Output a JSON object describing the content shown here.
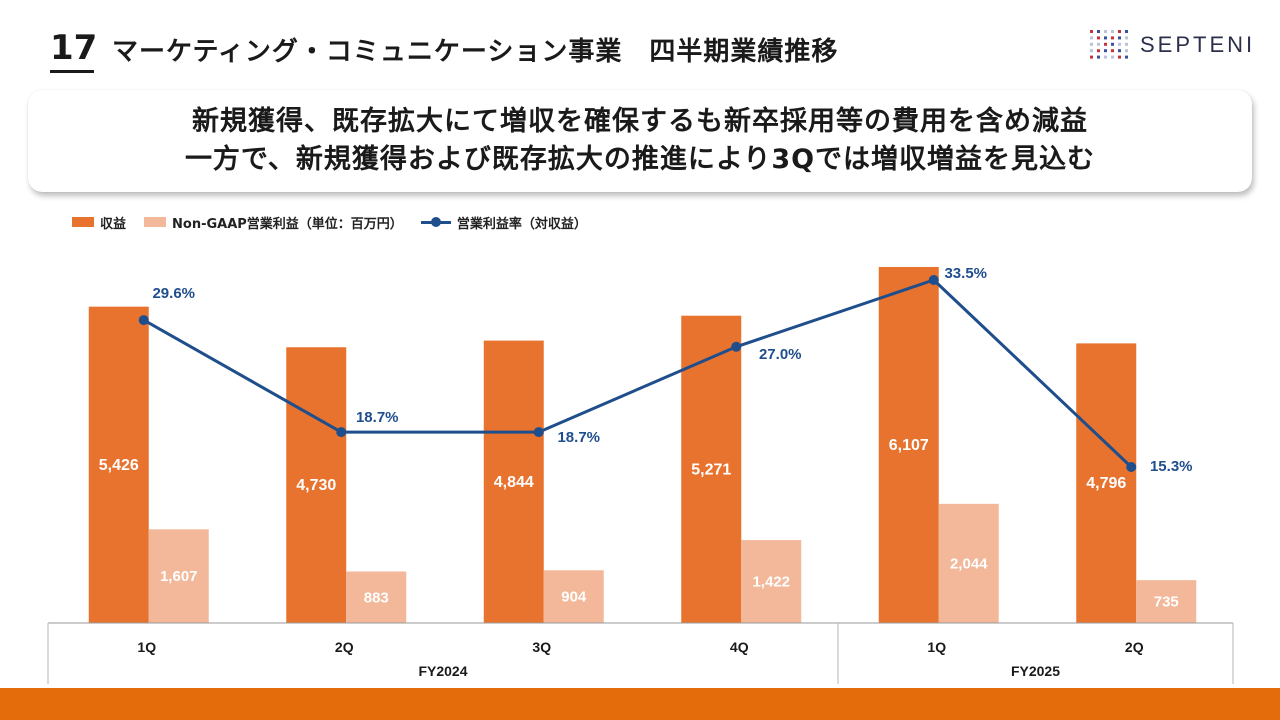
{
  "header": {
    "page_number": "17",
    "title": "マーケティング・コミュニケーション事業　四半期業績推移",
    "logo_text": "SEPTENI"
  },
  "headline": {
    "line1": "新規獲得、既存拡大にて増収を確保するも新卒採用等の費用を含め減益",
    "line2": "一方で、新規獲得および既存拡大の推進により3Qでは増収増益を見込む"
  },
  "legend": {
    "revenue": "収益",
    "op_income": "Non-GAAP営業利益（単位：百万円）",
    "margin": "営業利益率（対収益）"
  },
  "colors": {
    "revenue": "#e8732f",
    "op_income": "#f2b899",
    "margin": "#1f4e8c",
    "accent_bar": "#e46c0a"
  },
  "chart_data": {
    "type": "bar",
    "categories": [
      "1Q",
      "2Q",
      "3Q",
      "4Q",
      "1Q",
      "2Q"
    ],
    "groups": [
      {
        "label": "FY2024",
        "count": 4
      },
      {
        "label": "FY2025",
        "count": 2
      }
    ],
    "series": [
      {
        "name": "収益",
        "type": "bar",
        "values": [
          5426,
          4730,
          4844,
          5271,
          6107,
          4796
        ],
        "labels": [
          "5,426",
          "4,730",
          "4,844",
          "5,271",
          "6,107",
          "4,796"
        ]
      },
      {
        "name": "Non-GAAP営業利益（単位：百万円）",
        "type": "bar",
        "values": [
          1607,
          883,
          904,
          1422,
          2044,
          735
        ],
        "labels": [
          "1,607",
          "883",
          "904",
          "1,422",
          "2,044",
          "735"
        ]
      },
      {
        "name": "営業利益率（対収益）",
        "type": "line",
        "values": [
          29.6,
          18.7,
          18.7,
          27.0,
          33.5,
          15.3
        ],
        "labels": [
          "29.6%",
          "18.7%",
          "18.7%",
          "27.0%",
          "33.5%",
          "15.3%"
        ]
      }
    ]
  }
}
